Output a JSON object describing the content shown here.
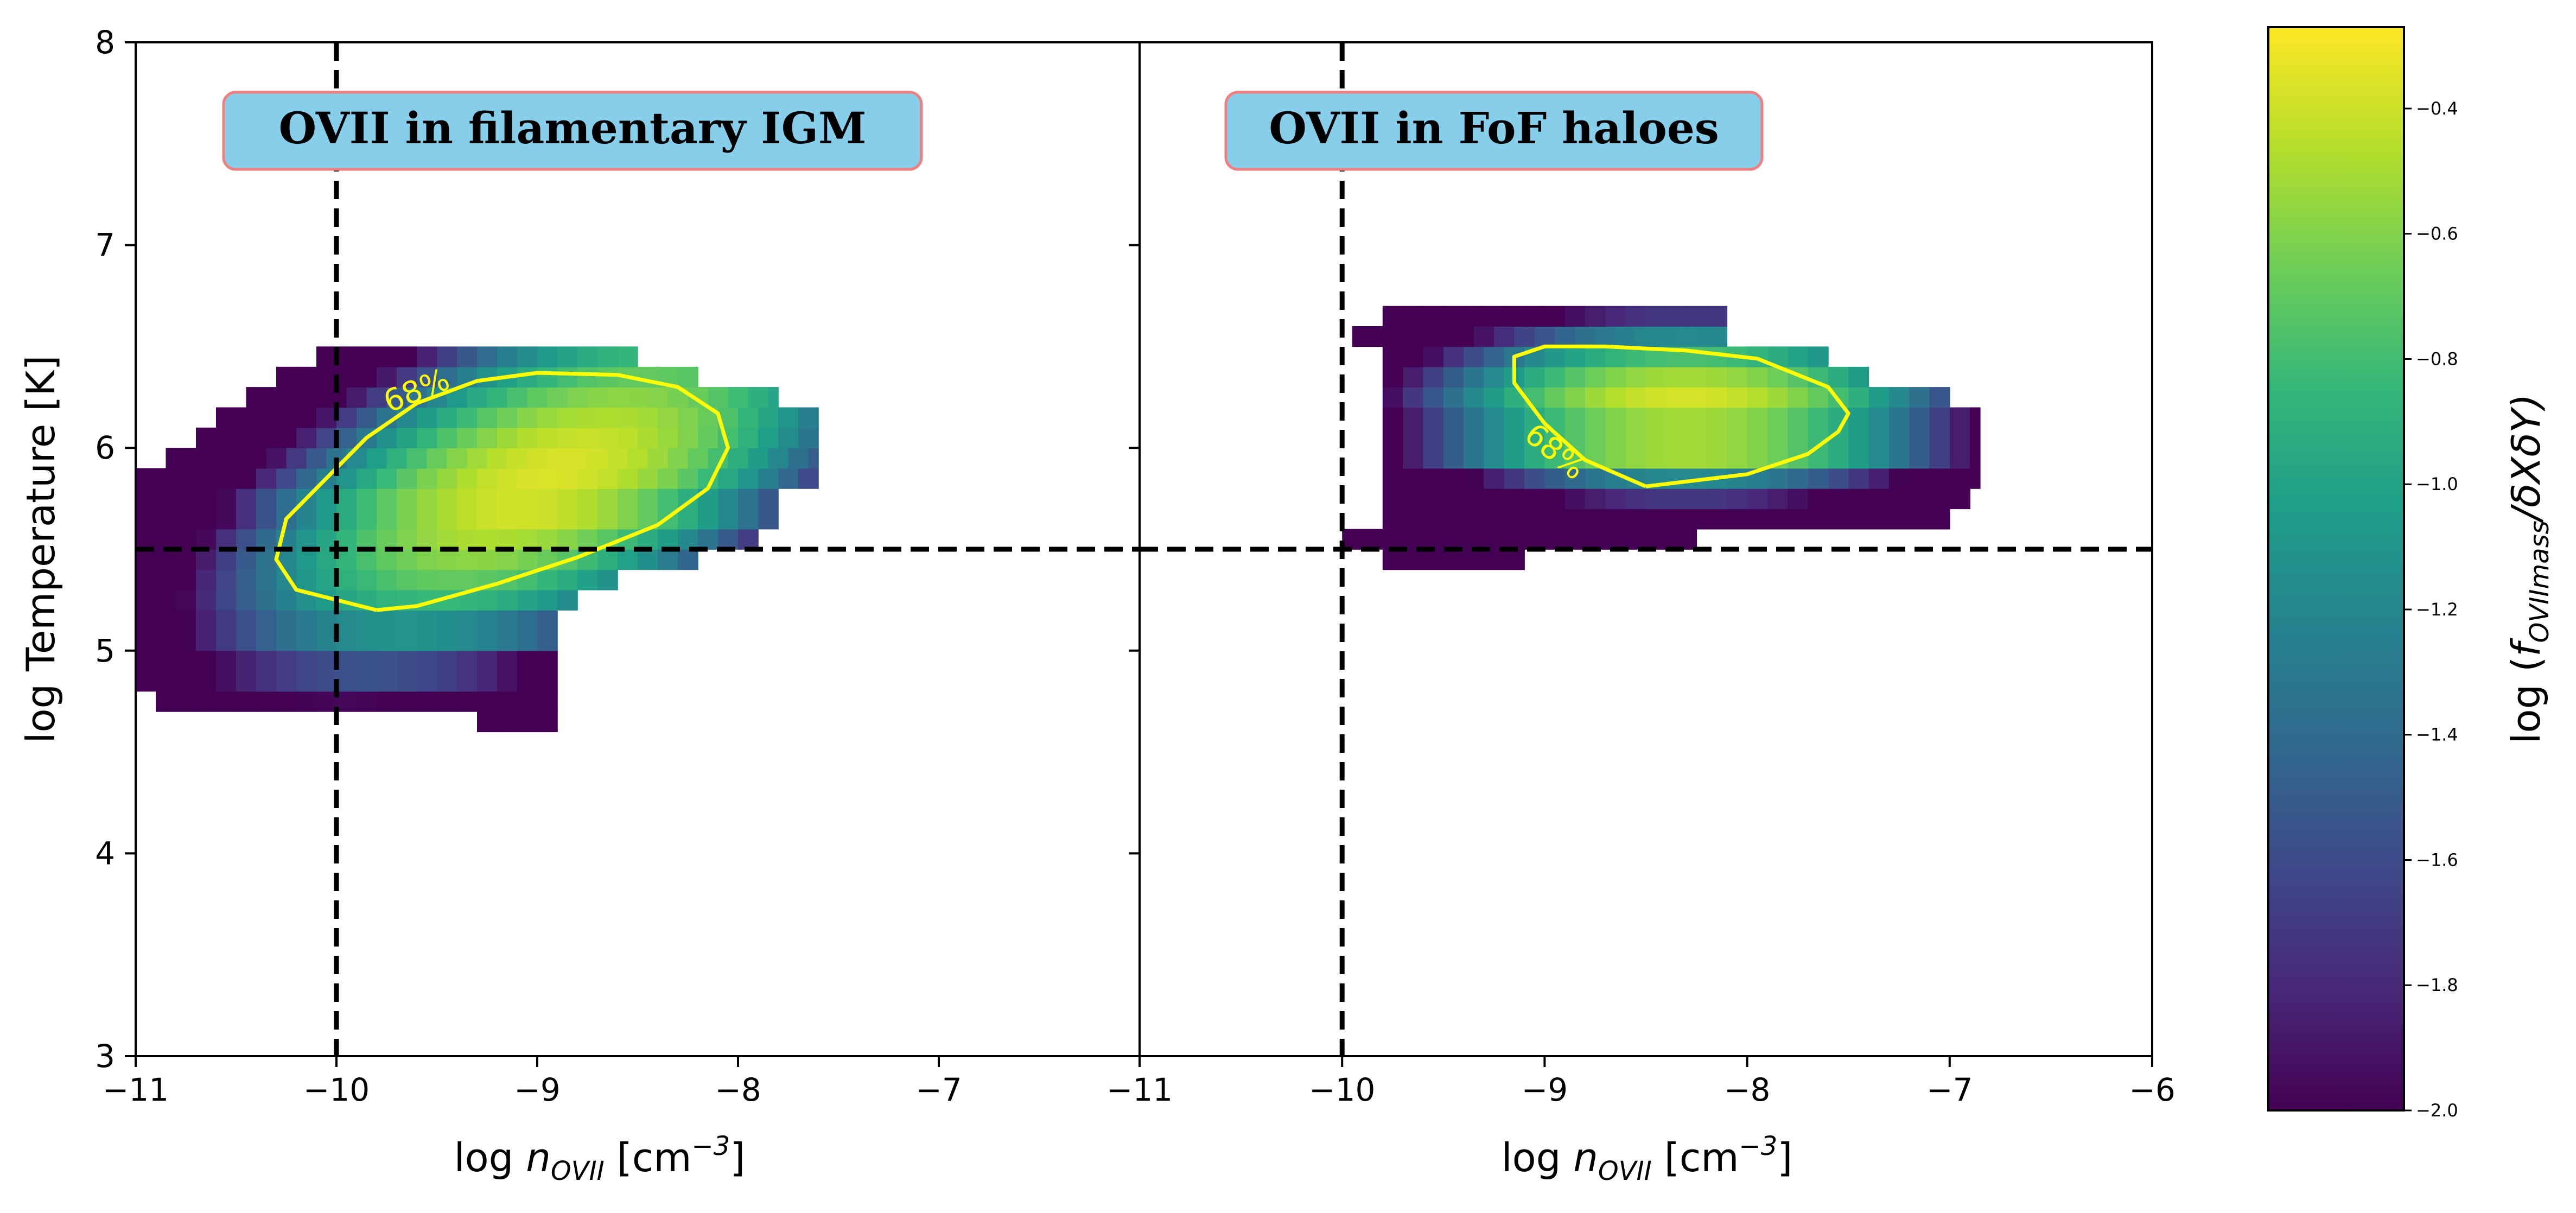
{
  "chart_data": [
    {
      "type": "heatmap",
      "panel": "left",
      "annotation": "OVII in filamentary IGM",
      "xlabel_base": "log ",
      "xlabel_var": "n",
      "xlabel_sub": "OVII",
      "xlabel_unit_open": " [cm",
      "xlabel_unit_exp": "−3",
      "xlabel_unit_close": "]",
      "ylabel": "log Temperature [K]",
      "xlim": [
        -11,
        -6
      ],
      "ylim": [
        3,
        8
      ],
      "xticks": [
        -11,
        -10,
        -9,
        -8,
        -7
      ],
      "xticklabels": [
        "−11",
        "−10",
        "−9",
        "−8",
        "−7"
      ],
      "yticks": [
        3,
        4,
        5,
        6,
        7,
        8
      ],
      "yticklabels": [
        "3",
        "4",
        "5",
        "6",
        "7",
        "8"
      ],
      "dashed_lines": {
        "x": -10,
        "y": 5.5
      },
      "contour_label": "68%",
      "distribution": {
        "center": [
          -8.95,
          5.85
        ],
        "spread": [
          1.1,
          0.55
        ],
        "tilt": 0.35,
        "rows": [
          {
            "y0": 4.6,
            "y1": 4.7,
            "xmin": -9.3,
            "xmax": -8.9
          },
          {
            "y0": 4.7,
            "y1": 4.8,
            "xmin": -10.9,
            "xmax": -8.9
          },
          {
            "y0": 4.8,
            "y1": 5.0,
            "xmin": -11.0,
            "xmax": -8.9
          },
          {
            "y0": 5.0,
            "y1": 5.2,
            "xmin": -11.0,
            "xmax": -8.9
          },
          {
            "y0": 5.2,
            "y1": 5.3,
            "xmin": -11.0,
            "xmax": -8.8
          },
          {
            "y0": 5.3,
            "y1": 5.4,
            "xmin": -11.0,
            "xmax": -8.6
          },
          {
            "y0": 5.4,
            "y1": 5.5,
            "xmin": -11.0,
            "xmax": -8.2
          },
          {
            "y0": 5.5,
            "y1": 5.6,
            "xmin": -11.0,
            "xmax": -7.9
          },
          {
            "y0": 5.6,
            "y1": 5.8,
            "xmin": -11.0,
            "xmax": -7.8
          },
          {
            "y0": 5.8,
            "y1": 5.9,
            "xmin": -11.0,
            "xmax": -7.6
          },
          {
            "y0": 5.9,
            "y1": 6.0,
            "xmin": -10.85,
            "xmax": -7.6
          },
          {
            "y0": 6.0,
            "y1": 6.1,
            "xmin": -10.7,
            "xmax": -7.6
          },
          {
            "y0": 6.1,
            "y1": 6.2,
            "xmin": -10.6,
            "xmax": -7.6
          },
          {
            "y0": 6.2,
            "y1": 6.3,
            "xmin": -10.45,
            "xmax": -7.8
          },
          {
            "y0": 6.3,
            "y1": 6.4,
            "xmin": -10.3,
            "xmax": -8.2
          },
          {
            "y0": 6.4,
            "y1": 6.5,
            "xmin": -10.1,
            "xmax": -8.5
          }
        ],
        "contour_68": [
          [
            -9.8,
            5.2
          ],
          [
            -10.2,
            5.3
          ],
          [
            -10.3,
            5.45
          ],
          [
            -10.25,
            5.65
          ],
          [
            -10.05,
            5.85
          ],
          [
            -9.85,
            6.05
          ],
          [
            -9.6,
            6.22
          ],
          [
            -9.3,
            6.33
          ],
          [
            -9.0,
            6.37
          ],
          [
            -8.6,
            6.36
          ],
          [
            -8.3,
            6.3
          ],
          [
            -8.1,
            6.17
          ],
          [
            -8.05,
            6.0
          ],
          [
            -8.15,
            5.8
          ],
          [
            -8.4,
            5.62
          ],
          [
            -8.8,
            5.46
          ],
          [
            -9.2,
            5.33
          ],
          [
            -9.6,
            5.22
          ],
          [
            -9.8,
            5.2
          ]
        ],
        "contour_label_pos": [
          -9.6,
          6.28
        ],
        "contour_label_angle": -22
      }
    },
    {
      "type": "heatmap",
      "panel": "right",
      "annotation": "OVII in FoF haloes",
      "xlabel_base": "log ",
      "xlabel_var": "n",
      "xlabel_sub": "OVII",
      "xlabel_unit_open": " [cm",
      "xlabel_unit_exp": "−3",
      "xlabel_unit_close": "]",
      "xlim": [
        -11,
        -6
      ],
      "ylim": [
        3,
        8
      ],
      "xticks": [
        -11,
        -10,
        -9,
        -8,
        -7,
        -6
      ],
      "xticklabels": [
        "−11",
        "−10",
        "−9",
        "−8",
        "−7",
        "−6"
      ],
      "yticks": [
        3,
        4,
        5,
        6,
        7,
        8
      ],
      "dashed_lines": {
        "x": -10,
        "y": 5.5
      },
      "contour_label": "68%",
      "distribution": {
        "center": [
          -8.3,
          6.2
        ],
        "spread": [
          0.9,
          0.3
        ],
        "tilt": 0.0,
        "rows": [
          {
            "y0": 5.4,
            "y1": 5.5,
            "xmin": -9.8,
            "xmax": -9.1
          },
          {
            "y0": 5.5,
            "y1": 5.6,
            "xmin": -10.0,
            "xmax": -8.25
          },
          {
            "y0": 5.6,
            "y1": 5.7,
            "xmin": -9.8,
            "xmax": -7.0
          },
          {
            "y0": 5.7,
            "y1": 5.8,
            "xmin": -9.8,
            "xmax": -6.9
          },
          {
            "y0": 5.8,
            "y1": 5.9,
            "xmin": -9.8,
            "xmax": -6.85
          },
          {
            "y0": 5.9,
            "y1": 6.2,
            "xmin": -9.8,
            "xmax": -6.85
          },
          {
            "y0": 6.2,
            "y1": 6.3,
            "xmin": -9.8,
            "xmax": -7.0
          },
          {
            "y0": 6.3,
            "y1": 6.4,
            "xmin": -9.8,
            "xmax": -7.4
          },
          {
            "y0": 6.4,
            "y1": 6.5,
            "xmin": -9.8,
            "xmax": -7.6
          },
          {
            "y0": 6.5,
            "y1": 6.6,
            "xmin": -9.95,
            "xmax": -8.1
          },
          {
            "y0": 6.6,
            "y1": 6.7,
            "xmin": -9.8,
            "xmax": -8.1
          }
        ],
        "contour_68": [
          [
            -8.5,
            5.81
          ],
          [
            -8.0,
            5.87
          ],
          [
            -7.7,
            5.97
          ],
          [
            -7.55,
            6.08
          ],
          [
            -7.5,
            6.17
          ],
          [
            -7.6,
            6.3
          ],
          [
            -7.95,
            6.44
          ],
          [
            -8.3,
            6.48
          ],
          [
            -8.7,
            6.5
          ],
          [
            -9.0,
            6.5
          ],
          [
            -9.15,
            6.45
          ],
          [
            -9.15,
            6.32
          ],
          [
            -9.0,
            6.12
          ],
          [
            -8.8,
            5.94
          ],
          [
            -8.5,
            5.81
          ]
        ],
        "contour_label_pos": [
          -8.95,
          5.98
        ],
        "contour_label_angle": 40
      }
    },
    {
      "type": "colorbar",
      "label_prefix": "log (",
      "label_var": "f",
      "label_sub": "OVIImass",
      "label_suffix": "/δXδY)",
      "range": [
        -2.0,
        -0.27
      ],
      "ticks": [
        -2.0,
        -1.8,
        -1.6,
        -1.4,
        -1.2,
        -1.0,
        -0.8,
        -0.6,
        -0.4
      ],
      "ticklabels": [
        "−2.0",
        "−1.8",
        "−1.6",
        "−1.4",
        "−1.2",
        "−1.0",
        "−0.8",
        "−0.6",
        "−0.4"
      ],
      "colormap": "viridis"
    }
  ],
  "colors": {
    "annotation_box_fill": "#87ceeb",
    "annotation_box_edge": "#f08080",
    "contour": "#ffff00",
    "dashed": "#000000",
    "viridis_stops": [
      "#440154",
      "#482878",
      "#3e4989",
      "#31688e",
      "#26828e",
      "#1f9e89",
      "#35b779",
      "#6ece58",
      "#b5de2b",
      "#fde725"
    ]
  }
}
